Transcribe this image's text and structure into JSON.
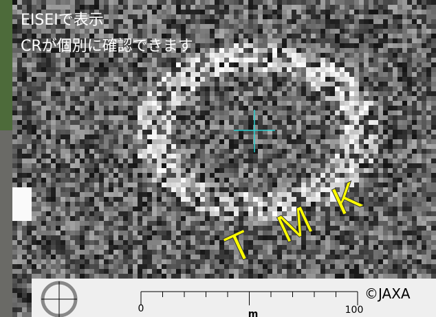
{
  "overlay_text": [
    "EISEIで表示",
    "CRが個別に確認できます"
  ],
  "labels": [
    "T",
    "M",
    "K"
  ],
  "scale_bar": {
    "start": "0",
    "end": "100",
    "unit": "m"
  },
  "credit": "©JAXA"
}
